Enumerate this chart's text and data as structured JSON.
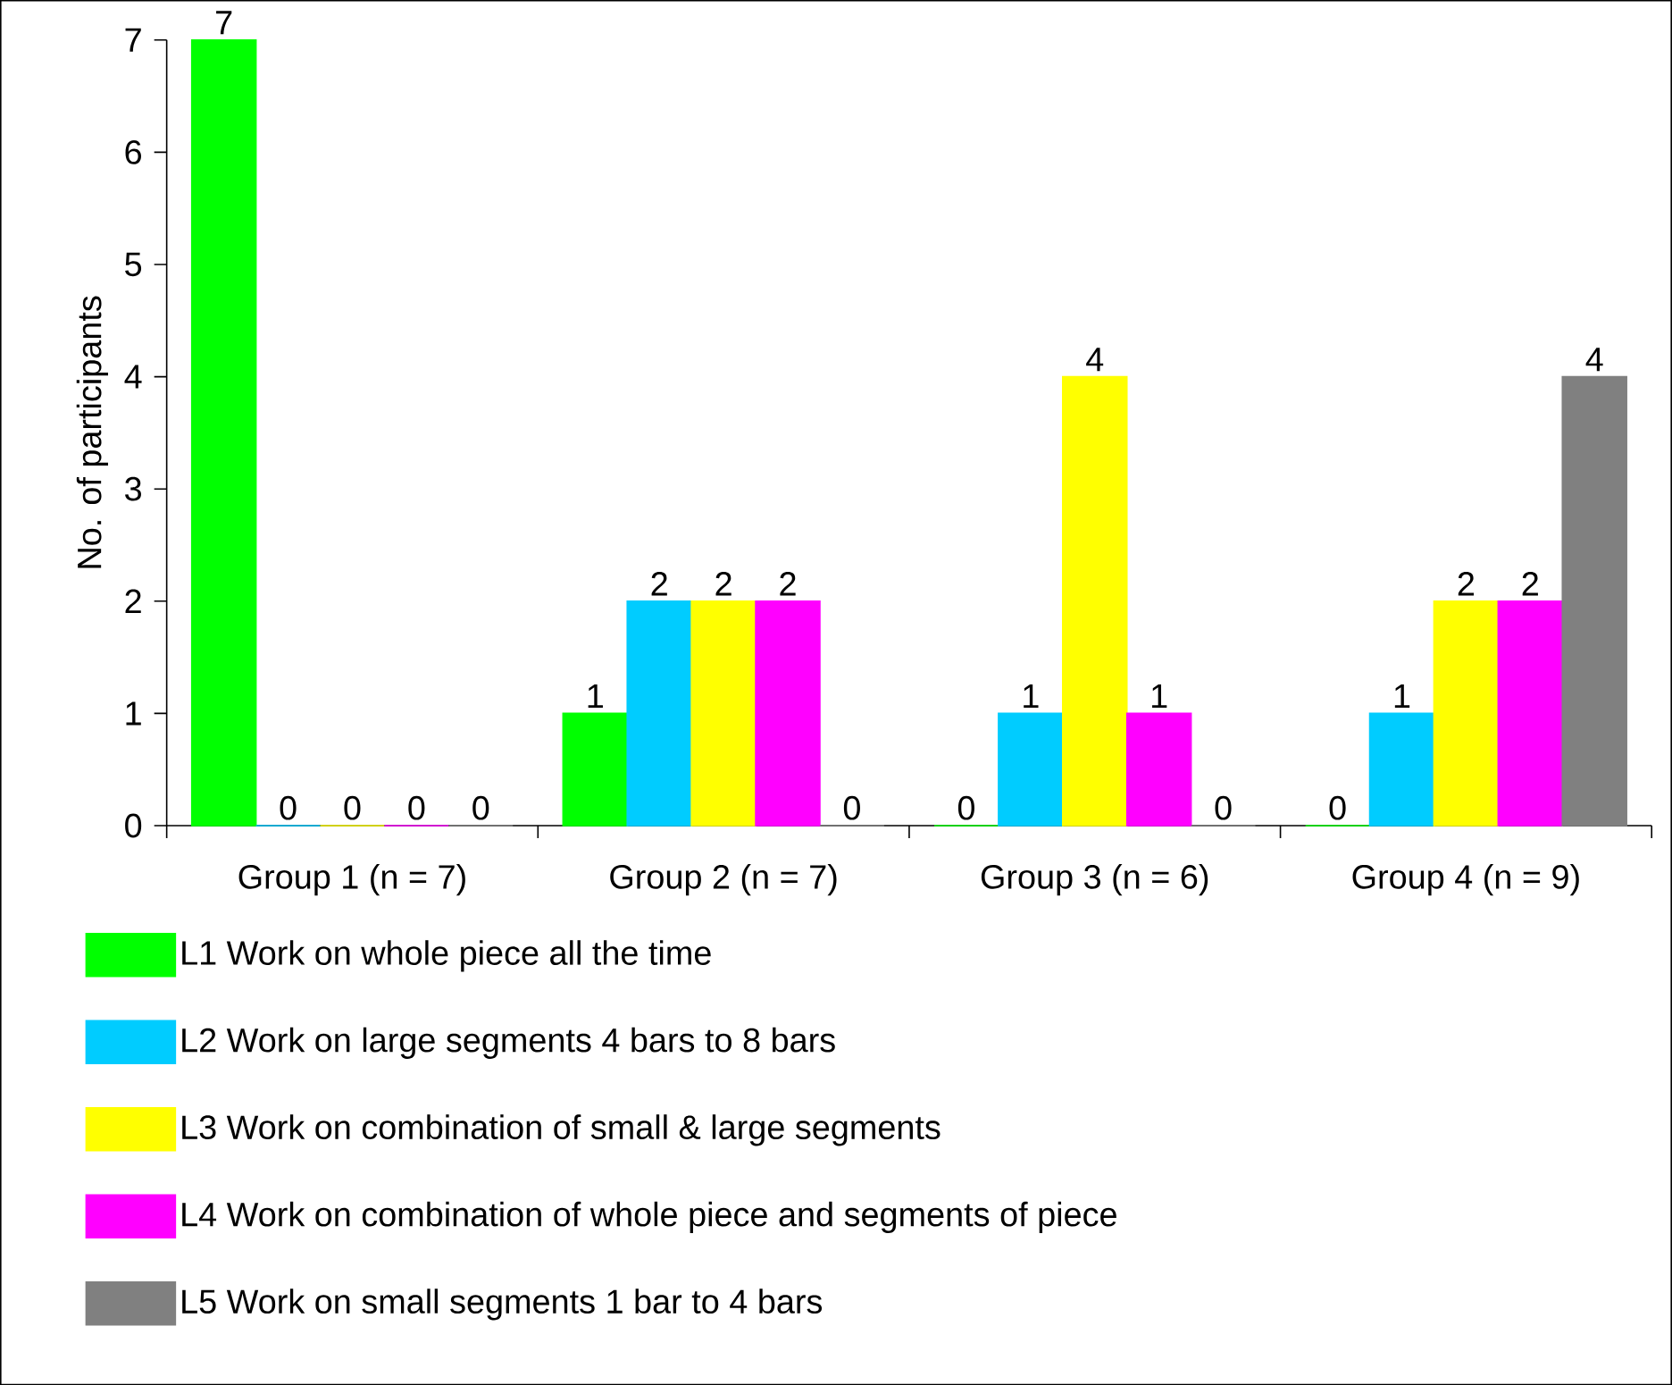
{
  "chart_data": {
    "type": "bar",
    "ylabel": "No. of participants",
    "categories": [
      "Group 1 (n = 7)",
      "Group 2 (n = 7)",
      "Group 3 (n = 6)",
      "Group 4 (n = 9)"
    ],
    "series": [
      {
        "name": "L1 Work on whole piece all the time",
        "color": "#00ff00",
        "values": [
          7,
          1,
          0,
          0
        ]
      },
      {
        "name": "L2 Work on large segments 4 bars to 8 bars",
        "color": "#00ccff",
        "values": [
          0,
          2,
          1,
          1
        ]
      },
      {
        "name": "L3 Work on combination of small & large segments",
        "color": "#ffff00",
        "values": [
          0,
          2,
          4,
          2
        ]
      },
      {
        "name": "L4 Work on combination of whole piece and segments of piece",
        "color": "#ff00ff",
        "values": [
          0,
          2,
          1,
          2
        ]
      },
      {
        "name": "L5 Work on small segments 1 bar to 4 bars",
        "color": "#808080",
        "values": [
          0,
          0,
          0,
          4
        ]
      }
    ],
    "ylim": [
      0,
      7
    ],
    "yticks": [
      0,
      1,
      2,
      3,
      4,
      5,
      6,
      7
    ],
    "data_labels": true,
    "grid": false,
    "legend": "bottom"
  }
}
